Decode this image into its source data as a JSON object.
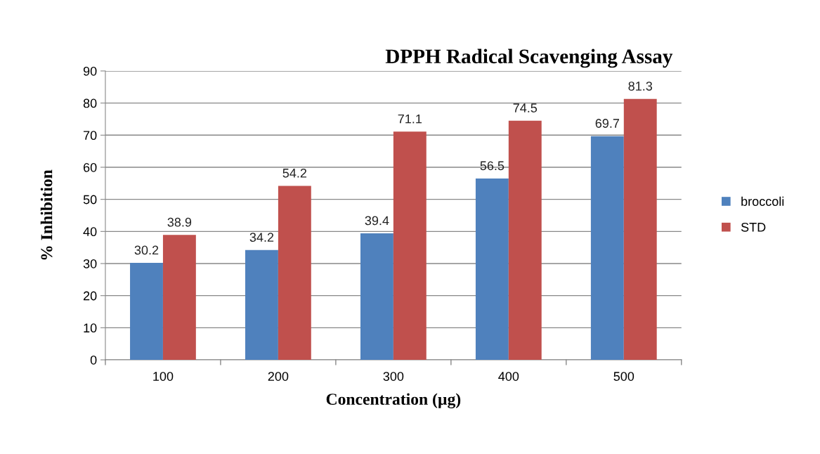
{
  "chart_data": {
    "type": "bar",
    "title": "DPPH Radical Scavenging Assay",
    "xlabel": "Concentration (µg)",
    "ylabel": "% Inhibition",
    "categories": [
      "100",
      "200",
      "300",
      "400",
      "500"
    ],
    "series": [
      {
        "name": "broccoli",
        "color": "#4f81bd",
        "values": [
          30.2,
          34.2,
          39.4,
          56.5,
          69.7
        ]
      },
      {
        "name": "STD",
        "color": "#c0504d",
        "values": [
          38.9,
          54.2,
          71.1,
          74.5,
          81.3
        ]
      }
    ],
    "ylim": [
      0,
      90
    ],
    "yticks": [
      0,
      10,
      20,
      30,
      40,
      50,
      60,
      70,
      80,
      90
    ],
    "grid": "y",
    "legend": "right",
    "data_labels": true
  }
}
